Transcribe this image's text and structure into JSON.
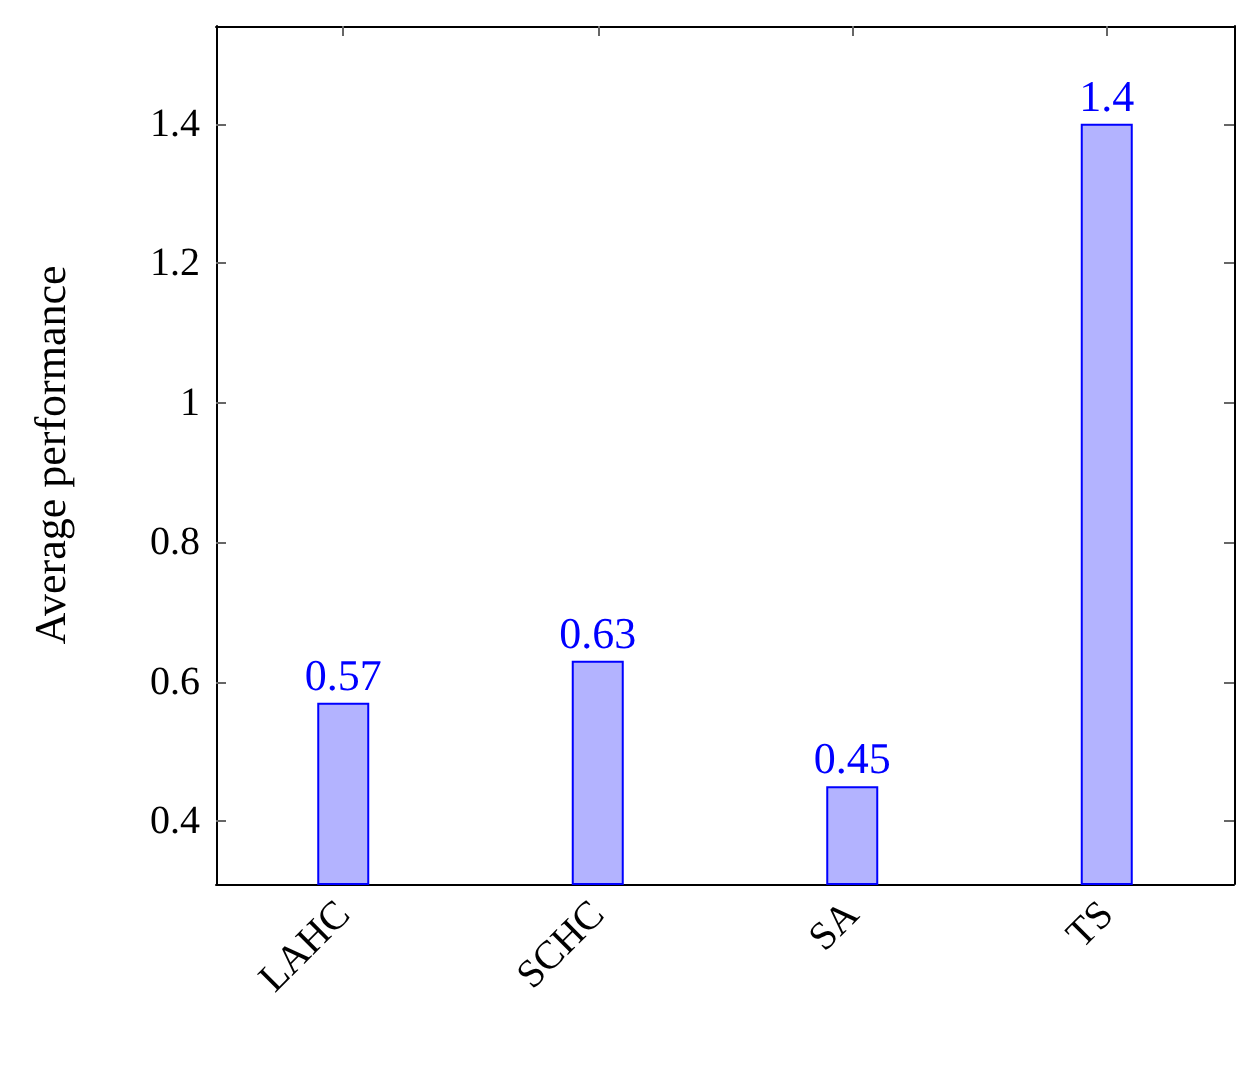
{
  "chart_data": {
    "type": "bar",
    "ylabel": "Average performance",
    "categories": [
      "LAHC",
      "SCHC",
      "SA",
      "TS"
    ],
    "values": [
      0.57,
      0.63,
      0.45,
      1.4
    ],
    "color": "#b3b3ff",
    "ylim": [
      0.31,
      1.54
    ],
    "yticks": [
      0.4,
      0.6,
      0.8,
      1,
      1.2,
      1.4
    ],
    "data_labels": true
  }
}
